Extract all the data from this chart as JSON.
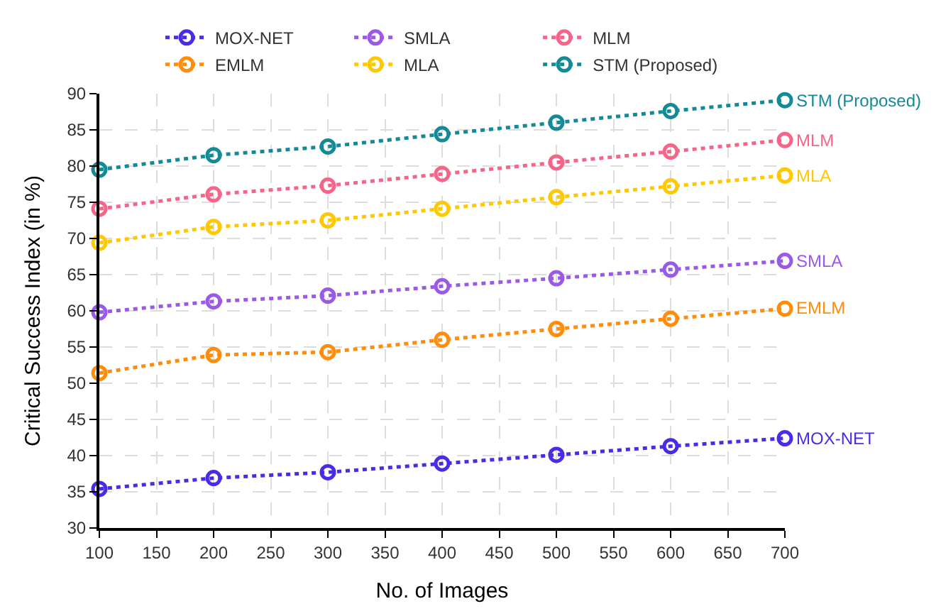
{
  "chart_data": {
    "type": "line",
    "xlabel": "No. of Images",
    "ylabel": "Critical Success Index (in %)",
    "x": [
      100,
      200,
      300,
      400,
      500,
      600,
      700
    ],
    "xlim": [
      100,
      700
    ],
    "xticks": [
      100,
      150,
      200,
      250,
      300,
      350,
      400,
      450,
      500,
      550,
      600,
      650,
      700
    ],
    "ylim": [
      30,
      90
    ],
    "yticks": [
      30,
      35,
      40,
      45,
      50,
      55,
      60,
      65,
      70,
      75,
      80,
      85,
      90
    ],
    "grid": true,
    "legend": "top",
    "marker": "circle",
    "line_style": "dotted",
    "series": [
      {
        "name": "MOX-NET",
        "color": "#4b2be6",
        "values": [
          35.4,
          36.9,
          37.7,
          38.9,
          40.1,
          41.3,
          42.4
        ]
      },
      {
        "name": "SMLA",
        "color": "#9b5ae6",
        "values": [
          59.8,
          61.3,
          62.1,
          63.4,
          64.5,
          65.7,
          66.9
        ]
      },
      {
        "name": "MLM",
        "color": "#f5658a",
        "values": [
          74.1,
          76.1,
          77.3,
          78.9,
          80.5,
          82.0,
          83.6
        ]
      },
      {
        "name": "EMLM",
        "color": "#ff8c0a",
        "values": [
          51.4,
          53.9,
          54.3,
          56.0,
          57.5,
          58.9,
          60.3
        ]
      },
      {
        "name": "MLA",
        "color": "#ffc800",
        "values": [
          69.4,
          71.6,
          72.5,
          74.1,
          75.7,
          77.2,
          78.7
        ]
      },
      {
        "name": "STM (Proposed)",
        "color": "#148a96",
        "values": [
          79.5,
          81.5,
          82.7,
          84.4,
          86.0,
          87.6,
          89.1
        ]
      }
    ]
  }
}
